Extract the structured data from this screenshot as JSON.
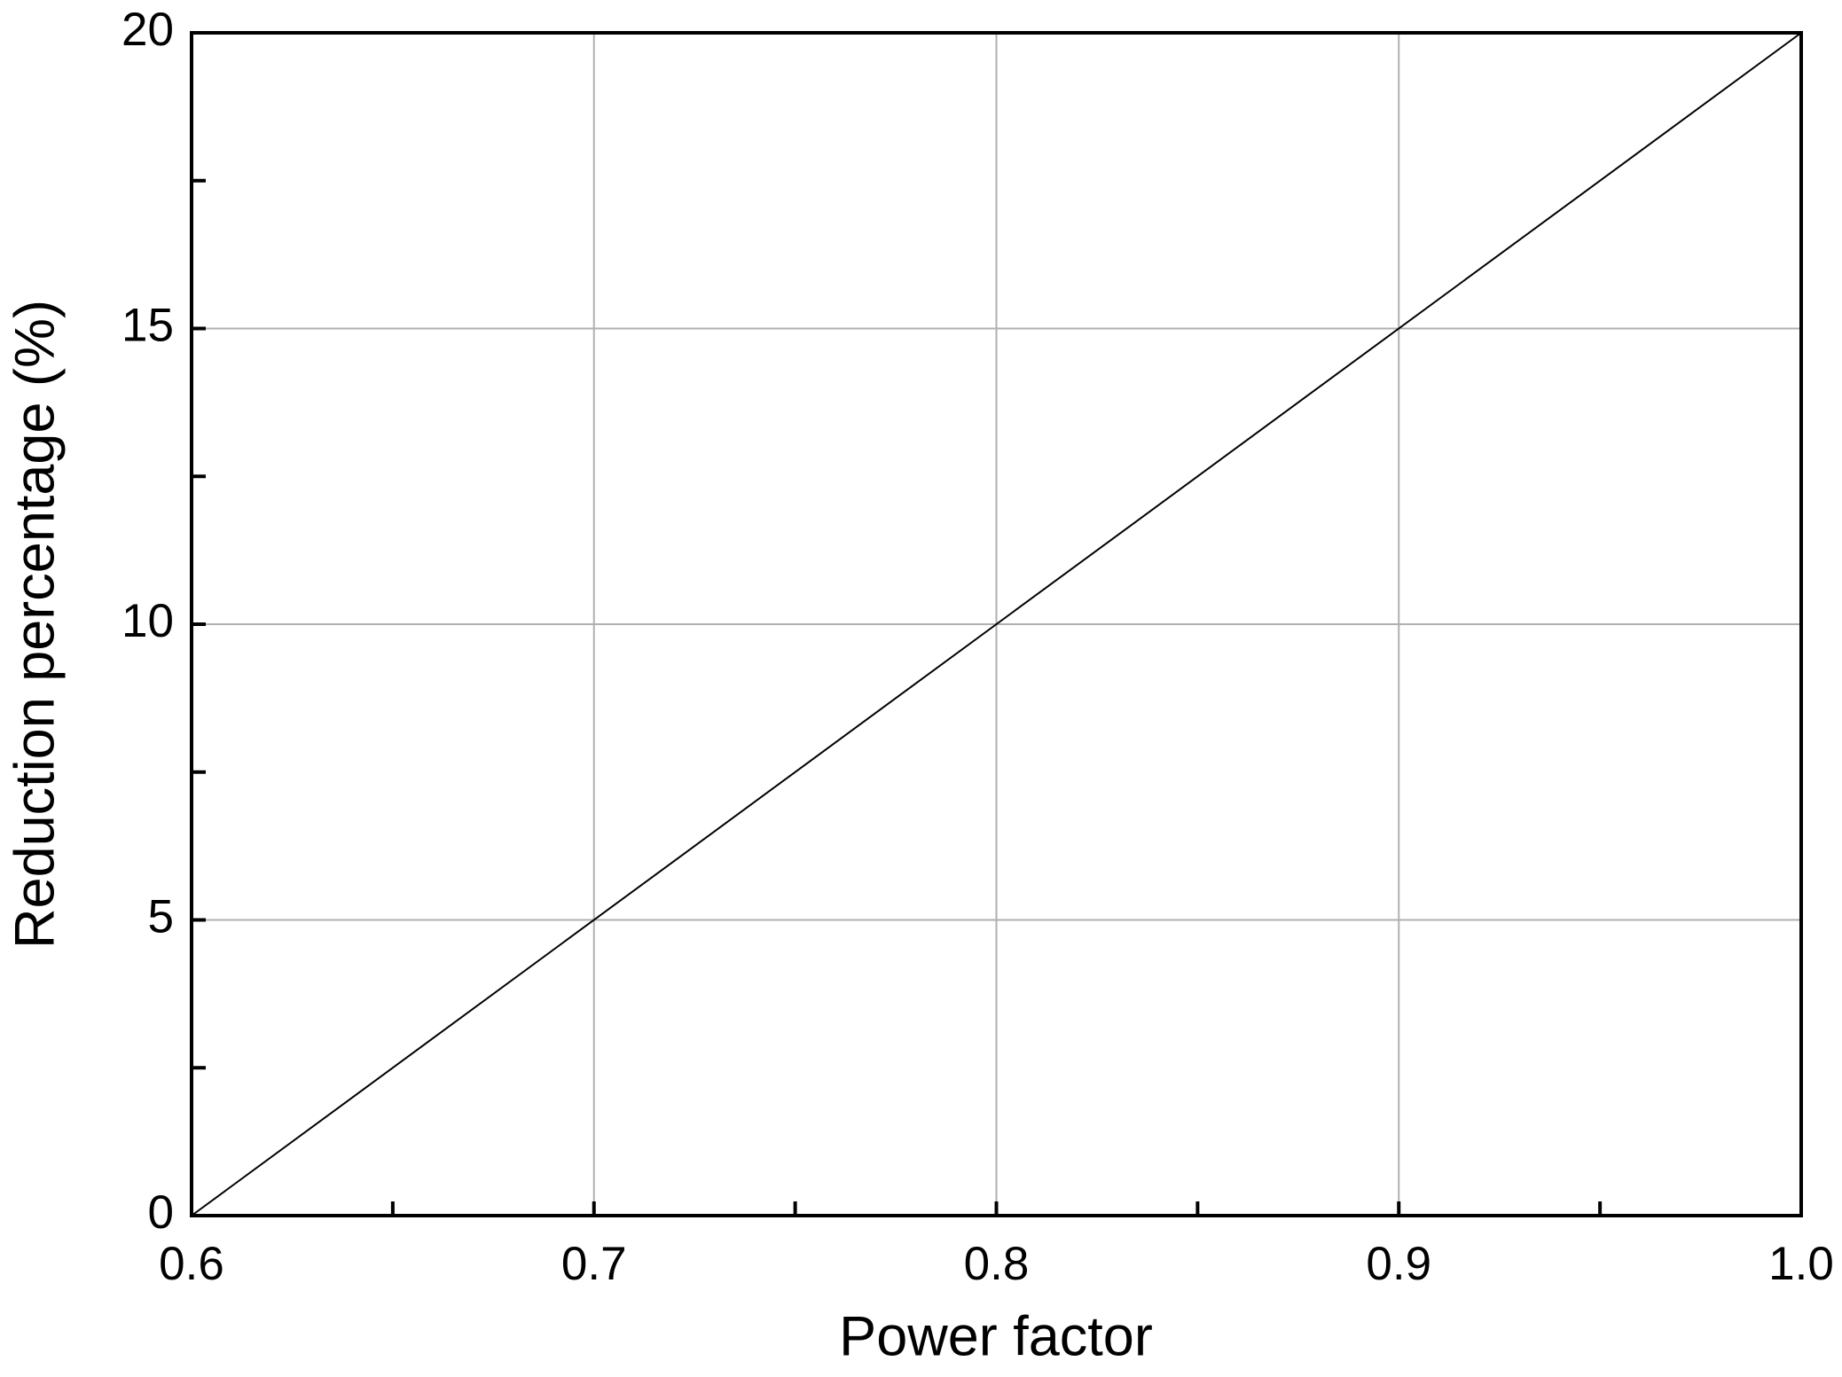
{
  "chart_data": {
    "type": "line",
    "x_label": "Power factor",
    "y_label": "Reduction  percentage (%)",
    "x": [
      0.6,
      1.0
    ],
    "series": [
      {
        "color": "#000000",
        "values": [
          0,
          20
        ]
      }
    ],
    "xlim": [
      0.6,
      1.0
    ],
    "xticks": [
      0.6,
      0.7,
      0.8,
      0.9,
      {
        "value": 1,
        "label": "1.0"
      }
    ],
    "xminorticks": [
      0.65,
      0.75,
      0.85,
      0.95
    ],
    "ylim": [
      0,
      20
    ],
    "yticks": [
      0,
      5,
      10,
      15,
      20
    ],
    "yminorticks": [
      2.5,
      7.5,
      12.5,
      17.5
    ],
    "grid": true
  }
}
